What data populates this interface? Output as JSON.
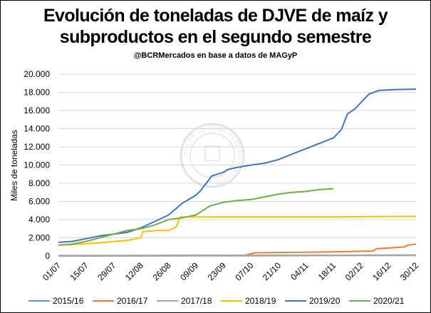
{
  "title_line1": "Evolución de toneladas de DJVE de maíz y",
  "title_line2": "subproductos en el segundo semestre",
  "subtitle": "@BCRMercados  en base a datos de MAGyP",
  "watermark": "BOLSA DE COMERCIO DE ROSARIO",
  "chart_data": {
    "type": "line",
    "ylabel": "Miles de toneladas",
    "xlabel": "",
    "ylim": [
      0,
      20000
    ],
    "y_ticks": [
      "0",
      "2.000",
      "4.000",
      "6.000",
      "8.000",
      "10.000",
      "12.000",
      "14.000",
      "16.000",
      "18.000",
      "20.000"
    ],
    "x_tick_labels": [
      "01/07",
      "15/07",
      "29/07",
      "12/08",
      "26/08",
      "09/09",
      "23/09",
      "07/10",
      "21/10",
      "04/11",
      "18/11",
      "02/12",
      "16/12",
      "30/12"
    ],
    "x_range_days": [
      0,
      182
    ],
    "legend_position": "bottom",
    "series": [
      {
        "name": "2015/16",
        "color": "#5b9bd5",
        "x": [
          0,
          110,
          130,
          182
        ],
        "y": [
          0,
          30,
          60,
          100
        ]
      },
      {
        "name": "2016/17",
        "color": "#ed7d31",
        "x": [
          0,
          95,
          100,
          120,
          140,
          150,
          160,
          162,
          170,
          176,
          178,
          182
        ],
        "y": [
          30,
          80,
          350,
          400,
          450,
          500,
          550,
          800,
          900,
          1000,
          1200,
          1300
        ]
      },
      {
        "name": "2017/18",
        "color": "#a5a5a5",
        "x": [
          0,
          120,
          182
        ],
        "y": [
          50,
          80,
          100
        ]
      },
      {
        "name": "2018/19",
        "color": "#ffc000",
        "x": [
          0,
          7,
          14,
          21,
          28,
          35,
          42,
          43,
          47,
          50,
          56,
          60,
          62,
          70,
          100,
          140,
          176,
          182
        ],
        "y": [
          1200,
          1250,
          1350,
          1450,
          1600,
          1700,
          2000,
          2700,
          2750,
          2800,
          2800,
          3200,
          4300,
          4300,
          4300,
          4300,
          4350,
          4350
        ]
      },
      {
        "name": "2019/20",
        "color": "#4472c4",
        "x": [
          0,
          7,
          14,
          21,
          28,
          35,
          42,
          49,
          56,
          63,
          70,
          72,
          77,
          78,
          84,
          86,
          90,
          98,
          105,
          112,
          120,
          126,
          133,
          140,
          144,
          147,
          151,
          158,
          163,
          170,
          182
        ],
        "y": [
          1500,
          1600,
          1900,
          2200,
          2400,
          2600,
          3100,
          3800,
          4500,
          5800,
          6700,
          7100,
          8500,
          8800,
          9200,
          9500,
          9700,
          10000,
          10200,
          10600,
          11300,
          11800,
          12400,
          13000,
          13900,
          15600,
          16200,
          17800,
          18200,
          18300,
          18350
        ]
      },
      {
        "name": "2020/21",
        "color": "#70ad47",
        "x": [
          0,
          7,
          14,
          21,
          28,
          35,
          42,
          49,
          56,
          63,
          70,
          77,
          84,
          91,
          98,
          105,
          112,
          119,
          126,
          133,
          140
        ],
        "y": [
          1200,
          1300,
          1600,
          2000,
          2400,
          2800,
          3000,
          3400,
          4000,
          4200,
          4500,
          5500,
          5900,
          6100,
          6200,
          6500,
          6800,
          7000,
          7100,
          7300,
          7400
        ]
      }
    ]
  }
}
